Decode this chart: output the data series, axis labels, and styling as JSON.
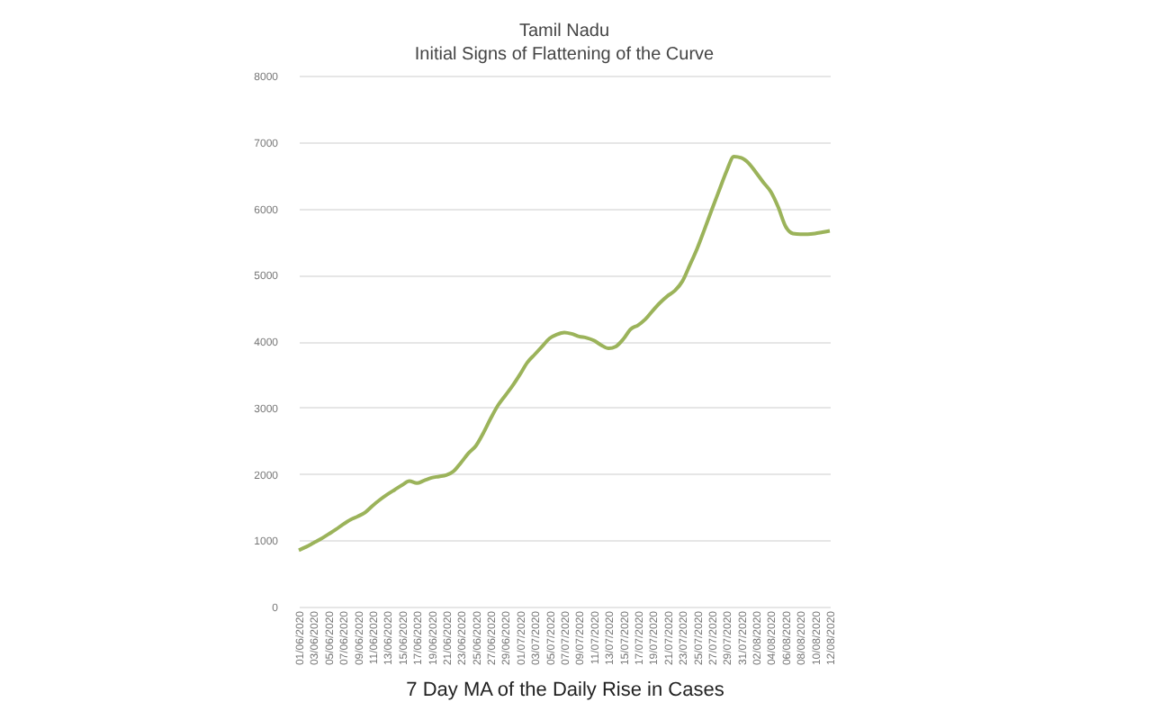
{
  "chart_data": {
    "type": "line",
    "title": "Tamil Nadu",
    "subtitle": "Initial Signs of Flattening of the Curve",
    "xlabel": "7 Day MA of the Daily Rise in Cases",
    "categories": [
      "01/06/2020",
      null,
      "03/06/2020",
      null,
      "05/06/2020",
      null,
      "07/06/2020",
      null,
      "09/06/2020",
      null,
      "11/06/2020",
      null,
      "13/06/2020",
      null,
      "15/06/2020",
      null,
      "17/06/2020",
      null,
      "19/06/2020",
      null,
      "21/06/2020",
      null,
      "23/06/2020",
      null,
      "25/06/2020",
      null,
      "27/06/2020",
      null,
      "29/06/2020",
      null,
      "01/07/2020",
      null,
      "03/07/2020",
      null,
      "05/07/2020",
      null,
      "07/07/2020",
      null,
      "09/07/2020",
      null,
      "11/07/2020",
      null,
      "13/07/2020",
      null,
      "15/07/2020",
      null,
      "17/07/2020",
      null,
      "19/07/2020",
      null,
      "21/07/2020",
      null,
      "23/07/2020",
      null,
      "25/07/2020",
      null,
      "27/07/2020",
      null,
      "29/07/2020",
      null,
      "31/07/2020",
      null,
      "02/08/2020",
      null,
      "04/08/2020",
      null,
      "06/08/2020",
      null,
      "08/08/2020",
      null,
      "10/08/2020",
      null,
      "12/08/2020"
    ],
    "series": [
      {
        "color": "#9bb35a",
        "values": [
          850,
          900,
          960,
          1020,
          1090,
          1160,
          1240,
          1310,
          1360,
          1420,
          1520,
          1610,
          1690,
          1760,
          1830,
          1890,
          1860,
          1900,
          1940,
          1960,
          1980,
          2040,
          2170,
          2310,
          2420,
          2610,
          2830,
          3030,
          3180,
          3330,
          3500,
          3680,
          3800,
          3920,
          4040,
          4100,
          4130,
          4110,
          4070,
          4050,
          4010,
          3940,
          3890,
          3920,
          4030,
          4180,
          4240,
          4330,
          4460,
          4580,
          4680,
          4760,
          4900,
          5140,
          5390,
          5680,
          5980,
          6270,
          6560,
          6780,
          6760,
          6680,
          6540,
          6390,
          6250,
          6020,
          5730,
          5620,
          5610,
          5610,
          5620,
          5640,
          5660
        ]
      }
    ],
    "ylim": [
      0,
      8000
    ],
    "yticks": [
      0,
      1000,
      2000,
      3000,
      4000,
      5000,
      6000,
      7000,
      8000
    ],
    "grid": "y",
    "marker": "none",
    "line_style": "solid"
  }
}
